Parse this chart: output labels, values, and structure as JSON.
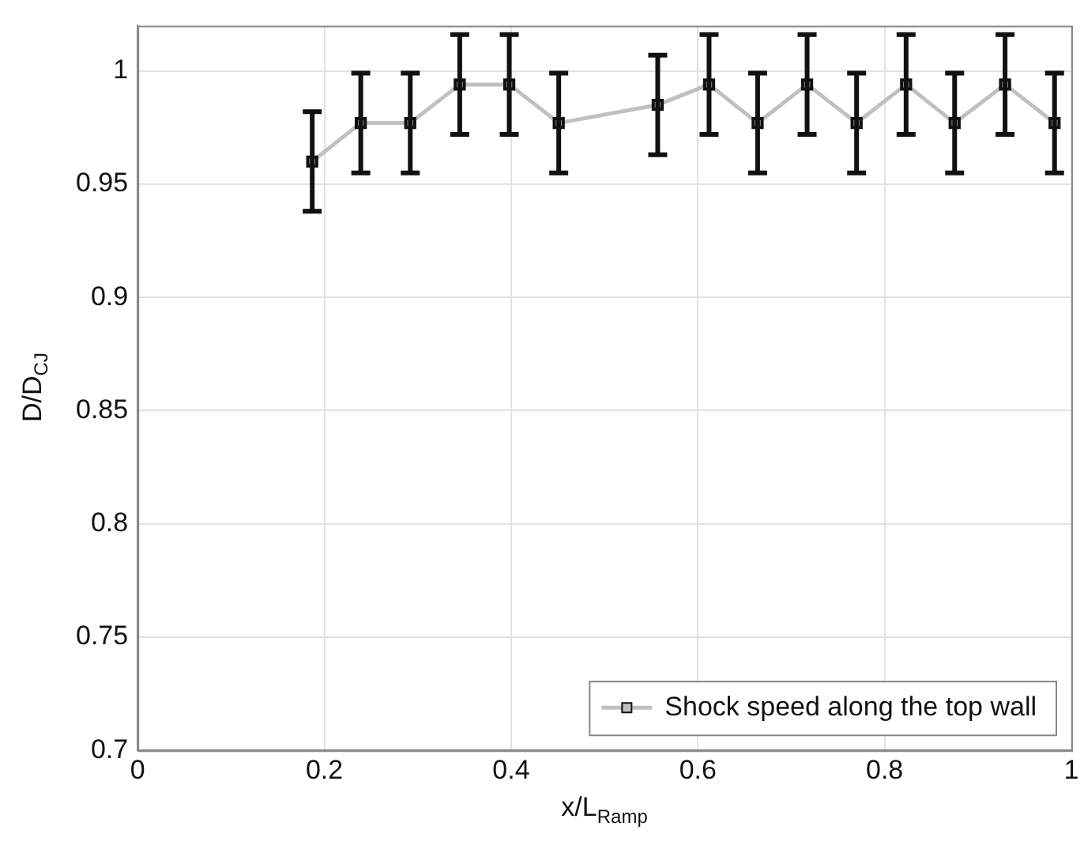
{
  "chart_data": {
    "type": "line",
    "xlabel": "x/L$_{Ramp}$",
    "ylabel": "D/D$_{CJ}$",
    "x": [
      0.187,
      0.239,
      0.292,
      0.345,
      0.398,
      0.451,
      0.557,
      0.612,
      0.664,
      0.717,
      0.77,
      0.823,
      0.875,
      0.929,
      0.982
    ],
    "series": [
      {
        "name": "Shock speed along the top wall",
        "color": "#c0c0c0",
        "values": [
          0.96,
          0.977,
          0.977,
          0.994,
          0.994,
          0.977,
          0.985,
          0.994,
          0.977,
          0.994,
          0.977,
          0.994,
          0.977,
          0.994,
          0.977
        ],
        "errors": [
          0.022,
          0.022,
          0.022,
          0.022,
          0.022,
          0.022,
          0.022,
          0.022,
          0.022,
          0.022,
          0.022,
          0.022,
          0.022,
          0.022,
          0.022
        ]
      }
    ],
    "xlim": [
      0,
      1
    ],
    "xticks": [
      0,
      0.2,
      0.4,
      0.6,
      0.8,
      1
    ],
    "ylim": [
      0.7,
      1.02
    ],
    "yticks": [
      0.7,
      0.75,
      0.8,
      0.85,
      0.9,
      0.95,
      1
    ],
    "grid": true,
    "legend": "bottom right",
    "marker": "square",
    "line_style": "solid"
  }
}
